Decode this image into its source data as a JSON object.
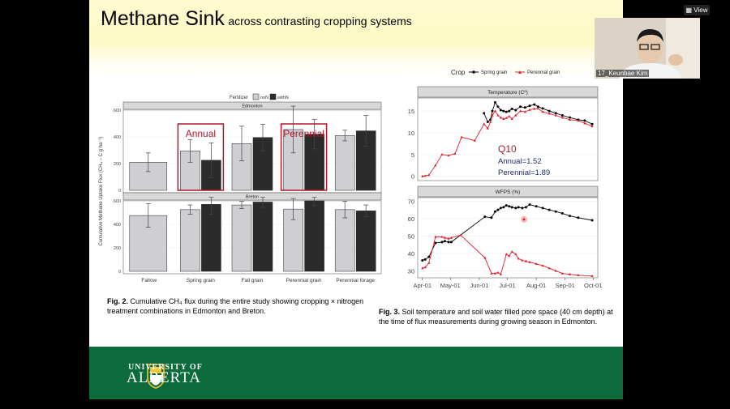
{
  "slide": {
    "title_main": "Methane Sink",
    "title_sub": "across contrasting cropping systems"
  },
  "fig2": {
    "caption_lead": "Fig. 2.",
    "caption_body": "Cumulative CH₄ flux during the entire study showing cropping × nitrogen treatment combinations in Edmonton and Breton."
  },
  "fig3": {
    "caption_lead": "Fig. 3.",
    "caption_body": "Soil temperature and soil water filled pore space (40 cm depth) at the time of flux measurements during growing season in Edmonton."
  },
  "footer": {
    "uni": "UNIVERSITY OF",
    "alberta": "ALBERTA"
  },
  "video": {
    "name": "17_Keunbae Kim",
    "view_label": "View"
  },
  "colors": {
    "footer_green": "#0b6b3a",
    "accent_red": "#b0172b",
    "bar_light": "#cfcfd3",
    "bar_dark": "#2b2b2b",
    "series_black": "#000000",
    "series_red": "#e0202a",
    "q10_text": "#1f2d6b"
  },
  "icons": [
    "university-crest-icon",
    "view-grid-icon"
  ],
  "chart_data": [
    {
      "type": "bar",
      "title": "",
      "legend_title": "Fertilizer",
      "legend_entries": [
        "noN",
        "withN"
      ],
      "ylabel": "Cumulative Methane Uptake Flux (CH₄ – C g ha⁻¹)",
      "categories": [
        "Fallow",
        "Spring grain",
        "Fall grain",
        "Perennial grain",
        "Perennial forage"
      ],
      "ylim": [
        0,
        600
      ],
      "yticks": [
        "0",
        "200",
        "400",
        "600"
      ],
      "panels": [
        {
          "strip": "Edmonton",
          "series": [
            {
              "name": "noN",
              "values": [
                210,
                295,
                350,
                455,
                410
              ],
              "errors": [
                70,
                85,
                130,
                175,
                40
              ]
            },
            {
              "name": "withN",
              "values": [
                null,
                225,
                395,
                420,
                445
              ],
              "errors": [
                null,
                130,
                100,
                110,
                115
              ]
            }
          ]
        },
        {
          "strip": "Breton",
          "series": [
            {
              "name": "noN",
              "values": [
                475,
                525,
                565,
                530,
                525
              ],
              "errors": [
                100,
                40,
                30,
                90,
                70
              ]
            },
            {
              "name": "withN",
              "values": [
                null,
                570,
                590,
                600,
                515
              ],
              "errors": [
                null,
                85,
                45,
                40,
                50
              ]
            }
          ]
        }
      ],
      "annotations": [
        "Annual",
        "Perennial"
      ]
    },
    {
      "type": "line",
      "legend_title": "Crop",
      "legend_entries": [
        "Spring grain",
        "Perennial grain"
      ],
      "x_ticks": [
        "Apr-01",
        "May-01",
        "Jun-01",
        "Jul-01",
        "Aug-01",
        "Sep-01",
        "Oct-01"
      ],
      "panels": [
        {
          "strip": "Temperature (Cº)",
          "ylim": [
            -1,
            18
          ],
          "yticks": [
            "0",
            "5",
            "10",
            "15"
          ],
          "series": [
            {
              "name": "Spring grain",
              "x": [
                "2021-06-06",
                "2021-06-10",
                "2021-06-13",
                "2021-06-15",
                "2021-06-18",
                "2021-06-21",
                "2021-06-24",
                "2021-06-27",
                "2021-06-30",
                "2021-07-03",
                "2021-07-06",
                "2021-07-10",
                "2021-07-15",
                "2021-07-20",
                "2021-07-25",
                "2021-07-30",
                "2021-08-03",
                "2021-08-08",
                "2021-08-15",
                "2021-08-22",
                "2021-08-29",
                "2021-09-06",
                "2021-09-15",
                "2021-09-22",
                "2021-09-30"
              ],
              "y": [
                14.5,
                12.5,
                13,
                15,
                17,
                16,
                15.2,
                15,
                14.8,
                15,
                15.5,
                15.2,
                16,
                15.8,
                16.2,
                16.5,
                16,
                15.6,
                15,
                14.5,
                14,
                13.5,
                13,
                12.8,
                12
              ]
            },
            {
              "name": "Perennial grain",
              "x": [
                "2021-04-01",
                "2021-04-04",
                "2021-04-08",
                "2021-04-15",
                "2021-04-22",
                "2021-04-29",
                "2021-05-06",
                "2021-05-13",
                "2021-05-27",
                "2021-06-06",
                "2021-06-10",
                "2021-06-13",
                "2021-06-15",
                "2021-06-18",
                "2021-06-21",
                "2021-06-24",
                "2021-06-27",
                "2021-06-30",
                "2021-07-03",
                "2021-07-06",
                "2021-07-10",
                "2021-07-15",
                "2021-07-20",
                "2021-07-25",
                "2021-07-30",
                "2021-08-03",
                "2021-08-08",
                "2021-08-15",
                "2021-08-22",
                "2021-08-29",
                "2021-09-06",
                "2021-09-15",
                "2021-09-22",
                "2021-09-30"
              ],
              "y": [
                0,
                0.1,
                0.3,
                2.5,
                5,
                4.8,
                5.2,
                9,
                8.2,
                12,
                11,
                12.5,
                14,
                15,
                14,
                13.5,
                13.2,
                13.4,
                13.8,
                13.2,
                14,
                15,
                14.8,
                15.3,
                15.5,
                15.6,
                14.8,
                14.4,
                14,
                13.5,
                13,
                12.8,
                12.2,
                11.5
              ]
            }
          ],
          "annotations": [
            "Q10",
            "Annual=1.52",
            "Perennial=1.89"
          ]
        },
        {
          "strip": "WFPS (%)",
          "ylim": [
            26,
            72
          ],
          "yticks": [
            "30",
            "40",
            "50",
            "60",
            "70"
          ],
          "series": [
            {
              "name": "Spring grain",
              "x": [
                "2021-04-01",
                "2021-04-04",
                "2021-04-08",
                "2021-04-15",
                "2021-04-22",
                "2021-04-25",
                "2021-04-29",
                "2021-05-02",
                "2021-06-07",
                "2021-06-14",
                "2021-06-18",
                "2021-06-21",
                "2021-06-24",
                "2021-06-27",
                "2021-06-30",
                "2021-07-03",
                "2021-07-06",
                "2021-07-10",
                "2021-07-13",
                "2021-07-17",
                "2021-07-21",
                "2021-07-25",
                "2021-08-01",
                "2021-08-08",
                "2021-08-15",
                "2021-08-22",
                "2021-08-29",
                "2021-09-06",
                "2021-09-15",
                "2021-09-30"
              ],
              "y": [
                36,
                36.5,
                38,
                46,
                46.5,
                47,
                46.5,
                46.5,
                61,
                60.5,
                64,
                65,
                66,
                66.5,
                67.5,
                67,
                66.5,
                66,
                66.5,
                66,
                66.5,
                68,
                67,
                66,
                65,
                64,
                63,
                61.5,
                60.5,
                59
              ]
            },
            {
              "name": "Perennial grain",
              "x": [
                "2021-04-01",
                "2021-04-04",
                "2021-04-08",
                "2021-04-15",
                "2021-04-22",
                "2021-04-25",
                "2021-04-29",
                "2021-05-02",
                "2021-05-12",
                "2021-06-07",
                "2021-06-14",
                "2021-06-18",
                "2021-06-21",
                "2021-06-24",
                "2021-06-30",
                "2021-07-03",
                "2021-07-06",
                "2021-07-10",
                "2021-07-13",
                "2021-07-17",
                "2021-07-21",
                "2021-07-25",
                "2021-08-01",
                "2021-08-08",
                "2021-08-15",
                "2021-08-22",
                "2021-08-29",
                "2021-09-06",
                "2021-09-15",
                "2021-09-30"
              ],
              "y": [
                31.5,
                32,
                34.5,
                49.5,
                49.5,
                49,
                48.5,
                49,
                50.5,
                37.5,
                28.5,
                28.5,
                29,
                28,
                39.5,
                38.5,
                41,
                39.5,
                37,
                36,
                35.5,
                35,
                34,
                33,
                31.5,
                30,
                28.5,
                28,
                27.5,
                27
              ]
            }
          ]
        }
      ]
    }
  ]
}
